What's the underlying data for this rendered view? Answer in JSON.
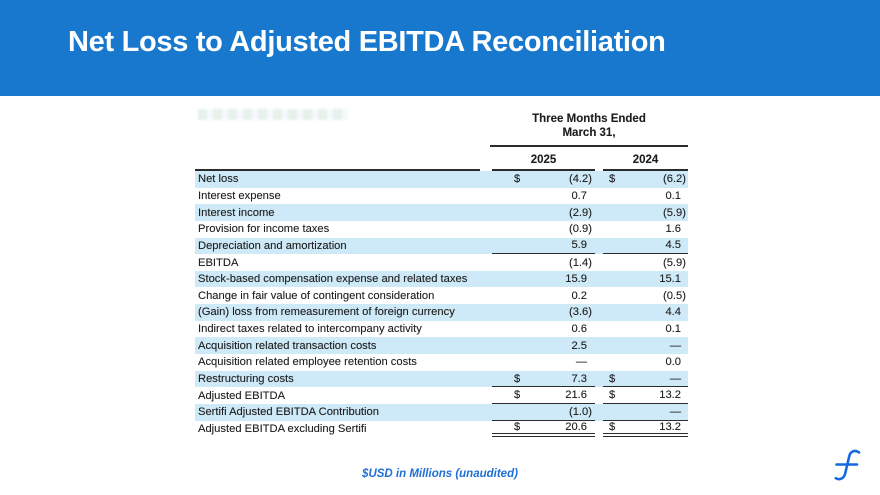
{
  "banner": {
    "title": "Net Loss to Adjusted EBITDA Reconciliation",
    "background_color": "#1878CE"
  },
  "table": {
    "period_header_line1": "Three Months Ended",
    "period_header_line2": "March 31,",
    "columns": [
      "2025",
      "2024"
    ],
    "stripe_color": "#CEE9F7",
    "rows": [
      {
        "label": "Net loss",
        "d1": "$",
        "v1": "(4.2)",
        "d2": "$",
        "v2": "(6.2)",
        "shaded": true,
        "rule": "none"
      },
      {
        "label": "Interest expense",
        "d1": "",
        "v1": "0.7",
        "d2": "",
        "v2": "0.1",
        "shaded": false,
        "rule": "none"
      },
      {
        "label": "Interest income",
        "d1": "",
        "v1": "(2.9)",
        "d2": "",
        "v2": "(5.9)",
        "shaded": true,
        "rule": "none"
      },
      {
        "label": "Provision for income taxes",
        "d1": "",
        "v1": "(0.9)",
        "d2": "",
        "v2": "1.6",
        "shaded": false,
        "rule": "none"
      },
      {
        "label": "Depreciation and amortization",
        "d1": "",
        "v1": "5.9",
        "d2": "",
        "v2": "4.5",
        "shaded": true,
        "rule": "single"
      },
      {
        "label": "EBITDA",
        "d1": "",
        "v1": "(1.4)",
        "d2": "",
        "v2": "(5.9)",
        "shaded": false,
        "rule": "none"
      },
      {
        "label": "Stock-based compensation expense and related taxes",
        "d1": "",
        "v1": "15.9",
        "d2": "",
        "v2": "15.1",
        "shaded": true,
        "rule": "none"
      },
      {
        "label": "Change in fair value of contingent consideration",
        "d1": "",
        "v1": "0.2",
        "d2": "",
        "v2": "(0.5)",
        "shaded": false,
        "rule": "none"
      },
      {
        "label": "(Gain) loss from remeasurement of foreign currency",
        "d1": "",
        "v1": "(3.6)",
        "d2": "",
        "v2": "4.4",
        "shaded": true,
        "rule": "none"
      },
      {
        "label": "Indirect taxes related to intercompany activity",
        "d1": "",
        "v1": "0.6",
        "d2": "",
        "v2": "0.1",
        "shaded": false,
        "rule": "none"
      },
      {
        "label": "Acquisition related transaction costs",
        "d1": "",
        "v1": "2.5",
        "d2": "",
        "v2": "—",
        "shaded": true,
        "rule": "none"
      },
      {
        "label": "Acquisition related employee retention costs",
        "d1": "",
        "v1": "—",
        "d2": "",
        "v2": "0.0",
        "shaded": false,
        "rule": "none"
      },
      {
        "label": "Restructuring costs",
        "d1": "$",
        "v1": "7.3",
        "d2": "$",
        "v2": "—",
        "shaded": true,
        "rule": "single"
      },
      {
        "label": "Adjusted EBITDA",
        "d1": "$",
        "v1": "21.6",
        "d2": "$",
        "v2": "13.2",
        "shaded": false,
        "rule": "single"
      },
      {
        "label": "Sertifi Adjusted EBITDA Contribution",
        "d1": "",
        "v1": "(1.0)",
        "d2": "",
        "v2": "—",
        "shaded": true,
        "rule": "single"
      },
      {
        "label": "Adjusted EBITDA excluding Sertifi",
        "d1": "$",
        "v1": "20.6",
        "d2": "$",
        "v2": "13.2",
        "shaded": false,
        "rule": "double"
      }
    ]
  },
  "footer": {
    "note": "$USD in Millions (unaudited)",
    "note_color": "#1E6FD6"
  },
  "logo": {
    "name": "flywire-f-mark",
    "color": "#1569E0"
  }
}
